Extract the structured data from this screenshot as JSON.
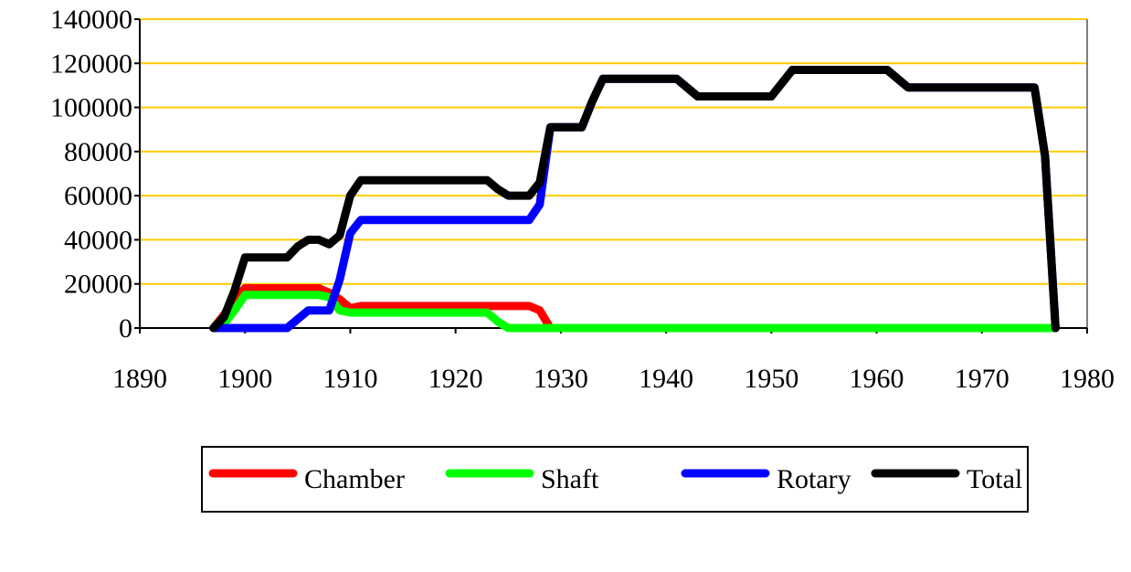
{
  "chart_data": {
    "type": "line",
    "title": "",
    "xlabel": "",
    "ylabel": "",
    "xlim": [
      1890,
      1980
    ],
    "ylim": [
      0,
      140000
    ],
    "xticks": [
      1890,
      1900,
      1910,
      1920,
      1930,
      1940,
      1950,
      1960,
      1970,
      1980
    ],
    "yticks": [
      0,
      20000,
      40000,
      60000,
      80000,
      100000,
      120000,
      140000
    ],
    "grid": "horizontal",
    "grid_color": "#FFCC00",
    "legend_position": "bottom",
    "series": [
      {
        "name": "Chamber",
        "color": "#FF0000",
        "x": [
          1897,
          1898,
          1899,
          1900,
          1907,
          1908,
          1909,
          1910,
          1911,
          1927,
          1928,
          1929,
          1977
        ],
        "y": [
          0,
          6000,
          13000,
          18000,
          18000,
          16000,
          13000,
          9000,
          10000,
          10000,
          8000,
          0,
          0
        ]
      },
      {
        "name": "Shaft",
        "color": "#00FF00",
        "x": [
          1897,
          1898,
          1899,
          1900,
          1907,
          1908,
          1909,
          1910,
          1923,
          1924,
          1925,
          1977
        ],
        "y": [
          0,
          2000,
          8000,
          15000,
          15000,
          14000,
          8000,
          7000,
          7000,
          3000,
          0,
          0
        ]
      },
      {
        "name": "Rotary",
        "color": "#0000FF",
        "x": [
          1897,
          1904,
          1905,
          1906,
          1908,
          1909,
          1910,
          1911,
          1927,
          1928,
          1929,
          1932,
          1933,
          1934,
          1941,
          1943,
          1950,
          1952,
          1961,
          1963,
          1975,
          1976,
          1977
        ],
        "y": [
          0,
          0,
          4000,
          8000,
          8000,
          22000,
          43000,
          49000,
          49000,
          56000,
          91000,
          91000,
          103000,
          113000,
          113000,
          105000,
          105000,
          117000,
          117000,
          109000,
          109000,
          78000,
          0
        ]
      },
      {
        "name": "Total",
        "color": "#000000",
        "x": [
          1897,
          1898,
          1899,
          1900,
          1904,
          1905,
          1906,
          1907,
          1908,
          1909,
          1910,
          1911,
          1923,
          1924,
          1925,
          1927,
          1928,
          1929,
          1932,
          1933,
          1934,
          1941,
          1943,
          1950,
          1952,
          1961,
          1963,
          1975,
          1976,
          1977
        ],
        "y": [
          0,
          5000,
          17000,
          32000,
          32000,
          37000,
          40000,
          40000,
          38000,
          42000,
          60000,
          67000,
          67000,
          63000,
          60000,
          60000,
          66000,
          91000,
          91000,
          103000,
          113000,
          113000,
          105000,
          105000,
          117000,
          117000,
          109000,
          109000,
          78000,
          0
        ]
      }
    ]
  }
}
